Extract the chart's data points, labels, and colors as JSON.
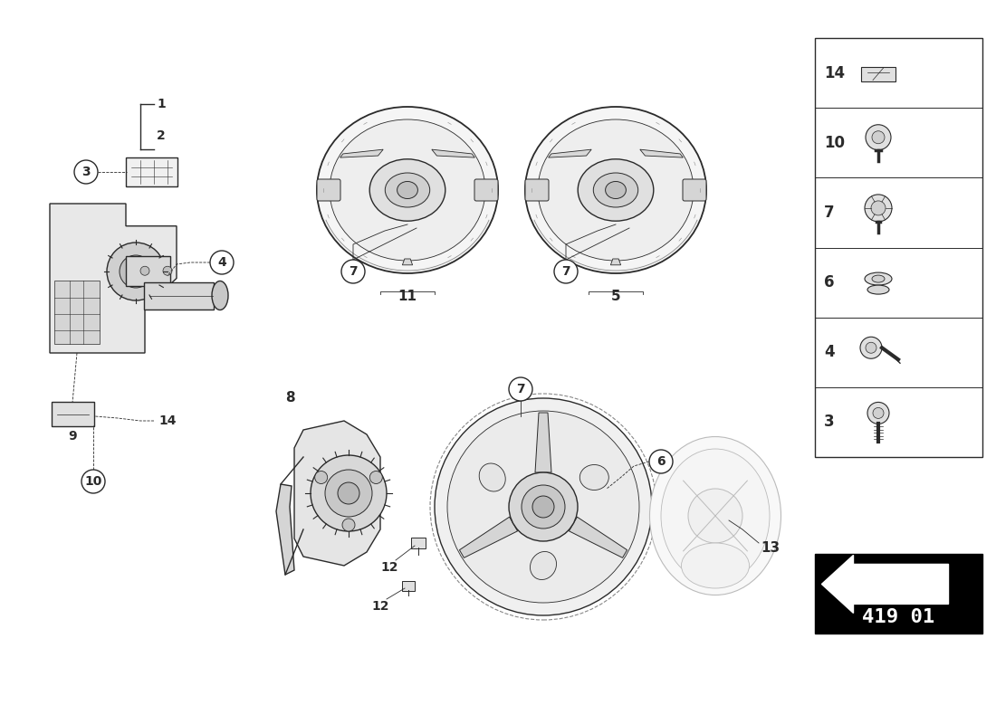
{
  "background_color": "#ffffff",
  "line_color": "#2a2a2a",
  "gray_color": "#888888",
  "light_gray": "#bbbbbb",
  "fig_width": 11.0,
  "fig_height": 8.0,
  "sidebar_parts": [
    14,
    10,
    7,
    6,
    4,
    3
  ],
  "badge_num": "419 01"
}
